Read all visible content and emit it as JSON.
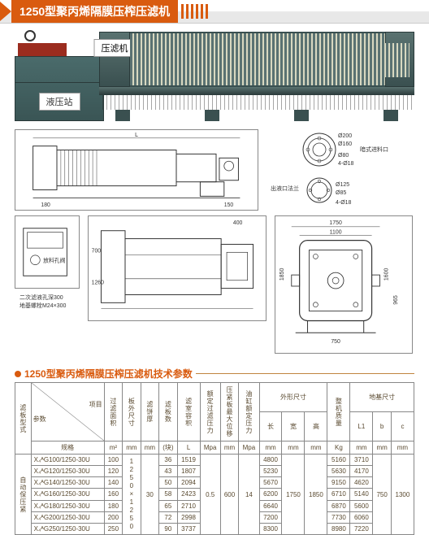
{
  "title": "1250型聚丙烯隔膜压榨压滤机",
  "product_labels": {
    "hydraulic_station": "液压站",
    "filter_press": "压滤机"
  },
  "diagram_dims": {
    "flange_d1": "Ø200",
    "flange_d2": "Ø160",
    "flange_d3": "Ø80",
    "flange_holes": "4-Ø18",
    "flange_label1": "暗式进料口",
    "outlet_d1": "Ø125",
    "outlet_d2": "Ø85",
    "outlet_holes": "4-Ø18",
    "outlet_label": "出液口法兰",
    "front_w1": "1750",
    "front_w2": "1100",
    "front_h1": "1850",
    "front_h2": "1600",
    "front_h3": "965",
    "front_btm": "750",
    "top_mark": "400",
    "side_L": "L",
    "side_180": "180",
    "side_150": "150",
    "top_700": "700",
    "top_1260": "1260",
    "hyd_note1": "放料孔阀",
    "hyd_note2": "二次滤液孔深300",
    "hyd_note3": "地基螺栓M24×300"
  },
  "params_title": "1250型聚丙烯隔膜压榨压滤机技术参数",
  "headers": {
    "filter_plate_type": "滤板型式",
    "params": "参数",
    "item": "项目",
    "spec": "规格",
    "filter_area": "过滤面积",
    "plate_size": "板外尺寸",
    "cake_thick": "滤饼厚",
    "plate_count": "滤板数",
    "chamber_vol": "滤室容积",
    "rated_pressure": "额定过滤压力",
    "max_plate_pos": "压紧板最大位移",
    "cyl_pressure": "油缸额定压力",
    "outer_dim": "外形尺寸",
    "length": "长",
    "width": "宽",
    "height": "高",
    "weight": "整机质量",
    "foundation": "地基尺寸",
    "L1": "L1",
    "b": "b",
    "c": "c",
    "unit_m2": "m²",
    "unit_mm": "mm",
    "unit_块": "(块)",
    "unit_L": "L",
    "unit_Mpa": "Mpa",
    "unit_Kg": "Kg"
  },
  "group_label": "自动保压紧",
  "shared": {
    "plate_size": "1250×1250",
    "cake_thick": "30",
    "rated_pressure": "0.5",
    "max_plate_pos": "600",
    "cyl_pressure": "14",
    "width": "1750",
    "height": "1850",
    "b": "750",
    "c": "1300"
  },
  "rows": [
    {
      "spec": "X₄ᴬG100/1250-30U",
      "area": "100",
      "plates": "36",
      "vol": "1519",
      "length": "4800",
      "weight": "5160",
      "L1": "3710"
    },
    {
      "spec": "X₄ᴬG120/1250-30U",
      "area": "120",
      "plates": "43",
      "vol": "1807",
      "length": "5230",
      "weight": "5630",
      "L1": "4170"
    },
    {
      "spec": "X₄ᴬG140/1250-30U",
      "area": "140",
      "plates": "50",
      "vol": "2094",
      "length": "5670",
      "weight": "9150",
      "L1": "4620"
    },
    {
      "spec": "X₄ᴬG160/1250-30U",
      "area": "160",
      "plates": "58",
      "vol": "2423",
      "length": "6200",
      "weight": "6710",
      "L1": "5140"
    },
    {
      "spec": "X₄ᴬG180/1250-30U",
      "area": "180",
      "plates": "65",
      "vol": "2710",
      "length": "6640",
      "weight": "6870",
      "L1": "5600"
    },
    {
      "spec": "X₄ᴬG200/1250-30U",
      "area": "200",
      "plates": "72",
      "vol": "2998",
      "length": "7200",
      "weight": "7730",
      "L1": "6060"
    },
    {
      "spec": "X₄ᴬG250/1250-30U",
      "area": "250",
      "plates": "90",
      "vol": "3737",
      "length": "8300",
      "weight": "8980",
      "L1": "7220"
    }
  ],
  "colors": {
    "accent": "#d95b0f",
    "table_text": "#5a4a30",
    "machine_body": "#4a6b6b"
  }
}
